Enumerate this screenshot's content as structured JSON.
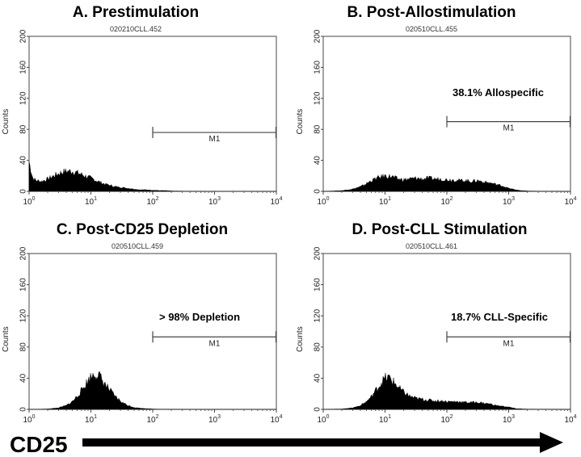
{
  "figure": {
    "x_axis_label": "CD25",
    "arrow": "right-arrow"
  },
  "chart_data": [
    {
      "type": "area",
      "title": "A. Prestimulation",
      "file_label": "020210CLL.452",
      "ylabel": "Counts",
      "xscale": "log",
      "xlim": [
        1,
        10000
      ],
      "ylim": [
        0,
        200
      ],
      "xticks": [
        1,
        10,
        100,
        1000,
        10000
      ],
      "yticks": [
        0,
        40,
        80,
        120,
        160,
        200
      ],
      "marker": {
        "label": "M1",
        "x_start": 100,
        "x_end": 10000,
        "y": 76
      },
      "annotation": "",
      "series": [
        {
          "x": [
            1,
            1.15,
            1.3,
            1.6,
            2,
            2.5,
            3,
            3.5,
            4,
            5,
            6,
            7,
            8,
            10,
            13,
            16,
            20,
            25,
            32,
            40,
            50,
            63,
            80,
            100,
            130,
            160,
            200,
            300,
            500,
            1000
          ],
          "y": [
            38,
            17,
            14,
            13,
            16,
            20,
            23,
            25,
            26,
            26,
            24,
            22,
            20,
            17,
            13,
            10,
            8,
            6,
            5,
            4,
            3,
            2,
            2,
            1.5,
            1,
            1,
            0.5,
            0.3,
            0.1,
            0
          ]
        }
      ]
    },
    {
      "type": "area",
      "title": "B. Post-Allostimulation",
      "file_label": "020510CLL.455",
      "ylabel": "Counts",
      "xscale": "log",
      "xlim": [
        1,
        10000
      ],
      "ylim": [
        0,
        200
      ],
      "xticks": [
        1,
        10,
        100,
        1000,
        10000
      ],
      "yticks": [
        0,
        40,
        80,
        120,
        160,
        200
      ],
      "marker": {
        "label": "M1",
        "x_start": 100,
        "x_end": 10000,
        "y": 90
      },
      "annotation": "38.1% Allospecific",
      "series": [
        {
          "x": [
            1,
            2,
            3,
            4,
            5,
            6,
            8,
            10,
            13,
            16,
            20,
            25,
            32,
            40,
            50,
            63,
            80,
            100,
            130,
            160,
            200,
            250,
            320,
            400,
            500,
            630,
            800,
            1000,
            1300,
            1600,
            2000,
            3000,
            10000
          ],
          "y": [
            0,
            1,
            3,
            6,
            10,
            14,
            18,
            20,
            19,
            16,
            15,
            16,
            17,
            16,
            17,
            16,
            16,
            15,
            15,
            14,
            14,
            13,
            14,
            12,
            11,
            9,
            7,
            4,
            2,
            1,
            0.5,
            0.2,
            0
          ]
        }
      ]
    },
    {
      "type": "area",
      "title": "C. Post-CD25 Depletion",
      "file_label": "020510CLL.459",
      "ylabel": "Counts",
      "xscale": "log",
      "xlim": [
        1,
        10000
      ],
      "ylim": [
        0,
        200
      ],
      "xticks": [
        1,
        10,
        100,
        1000,
        10000
      ],
      "yticks": [
        0,
        40,
        80,
        120,
        160,
        200
      ],
      "marker": {
        "label": "M1",
        "x_start": 100,
        "x_end": 10000,
        "y": 93
      },
      "annotation": "> 98% Depletion",
      "series": [
        {
          "x": [
            1,
            2,
            3,
            4,
            5,
            6,
            7,
            8,
            9,
            10,
            11,
            12,
            13,
            14,
            15,
            17,
            20,
            25,
            32,
            40,
            50,
            63,
            80,
            100,
            130,
            200,
            500,
            10000
          ],
          "y": [
            0,
            0.5,
            2,
            5,
            10,
            17,
            24,
            31,
            37,
            42,
            45,
            46,
            44,
            42,
            38,
            32,
            25,
            16,
            9,
            5,
            2.5,
            1.5,
            1,
            0.5,
            0.3,
            0.1,
            0,
            0
          ]
        }
      ]
    },
    {
      "type": "area",
      "title": "D. Post-CLL Stimulation",
      "file_label": "020510CLL.461",
      "ylabel": "Counts",
      "xscale": "log",
      "xlim": [
        1,
        10000
      ],
      "ylim": [
        0,
        200
      ],
      "xticks": [
        1,
        10,
        100,
        1000,
        10000
      ],
      "yticks": [
        0,
        40,
        80,
        120,
        160,
        200
      ],
      "marker": {
        "label": "M1",
        "x_start": 100,
        "x_end": 10000,
        "y": 93
      },
      "annotation": "18.7% CLL-Specific",
      "series": [
        {
          "x": [
            1,
            2,
            3,
            4,
            5,
            6,
            7,
            8,
            9,
            10,
            11,
            12,
            13,
            15,
            17,
            20,
            25,
            32,
            40,
            50,
            63,
            80,
            100,
            130,
            160,
            200,
            250,
            320,
            400,
            500,
            630,
            800,
            1000,
            1300,
            2000,
            10000
          ],
          "y": [
            0,
            0.5,
            2,
            5,
            10,
            16,
            24,
            30,
            36,
            40,
            41,
            40,
            37,
            32,
            27,
            22,
            17,
            14,
            13,
            12,
            11,
            11,
            10,
            10,
            10,
            9,
            9,
            9,
            8,
            7,
            5,
            4,
            3,
            1,
            0.3,
            0
          ]
        }
      ]
    }
  ]
}
